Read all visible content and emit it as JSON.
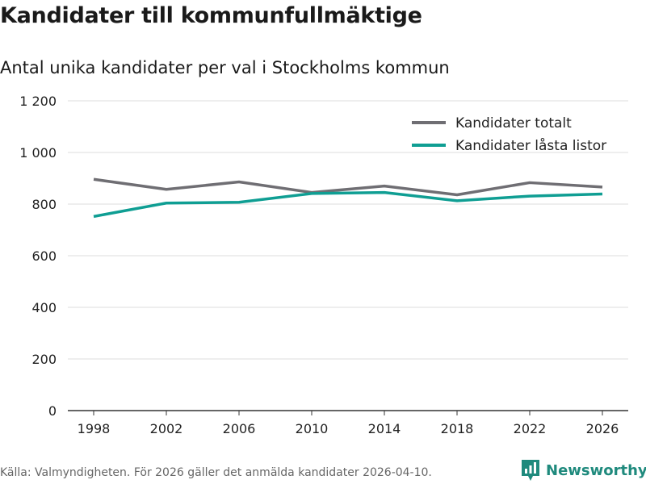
{
  "title": "Kandidater till kommunfullmäktige",
  "subtitle": "Antal unika kandidater per val i Stockholms kommun",
  "source": "Källa: Valmyndigheten. För 2026 gäller det anmälda kandidater 2026-04-10.",
  "brand": "Newsworthy",
  "colors": {
    "series_total": "#6f6e73",
    "series_locked": "#0f9e93",
    "grid": "#dddddd",
    "axis": "#333333",
    "brand": "#1f8a7d"
  },
  "chart_data": {
    "type": "line",
    "title": "Kandidater till kommunfullmäktige",
    "subtitle": "Antal unika kandidater per val i Stockholms kommun",
    "xlabel": "",
    "ylabel": "",
    "x": [
      "1998",
      "2002",
      "2006",
      "2010",
      "2014",
      "2018",
      "2022",
      "2026"
    ],
    "ylim": [
      0,
      1200
    ],
    "yticks": [
      0,
      200,
      400,
      600,
      800,
      1000,
      1200
    ],
    "ytick_labels": [
      "0",
      "200",
      "400",
      "600",
      "800",
      "1 000",
      "1 200"
    ],
    "grid": true,
    "legend_position": "top-right",
    "series": [
      {
        "name": "Kandidater totalt",
        "color": "#6f6e73",
        "values": [
          896,
          857,
          886,
          845,
          870,
          836,
          883,
          866
        ]
      },
      {
        "name": "Kandidater låsta listor",
        "color": "#0f9e93",
        "values": [
          752,
          804,
          807,
          841,
          845,
          813,
          831,
          839
        ]
      }
    ]
  }
}
